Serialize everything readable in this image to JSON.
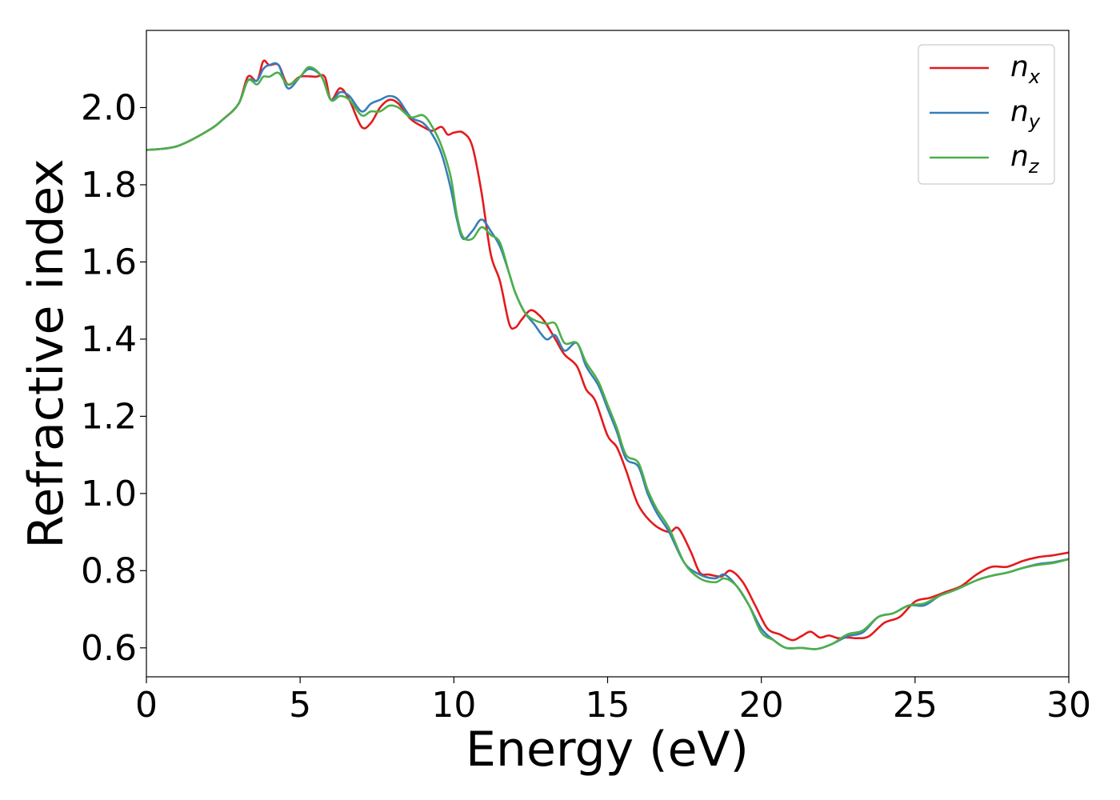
{
  "chart_data": {
    "type": "line",
    "title": "",
    "xlabel": "Energy (eV)",
    "ylabel": "Refractive index",
    "xlim": [
      0,
      30
    ],
    "ylim": [
      0.525,
      2.2
    ],
    "xticks": [
      0,
      5,
      10,
      15,
      20,
      25,
      30
    ],
    "yticks": [
      0.6,
      0.8,
      1.0,
      1.2,
      1.4,
      1.6,
      1.8,
      2.0
    ],
    "grid": false,
    "legend_position": "top-right",
    "series": [
      {
        "name": "n_x",
        "name_base": "n",
        "name_sub": "x",
        "color": "#e41a1c",
        "x": [
          0,
          1,
          2,
          2.5,
          3,
          3.3,
          3.6,
          3.8,
          4,
          4.3,
          4.6,
          5,
          5.5,
          5.8,
          6,
          6.3,
          6.6,
          7,
          7.3,
          7.6,
          7.9,
          8.2,
          8.6,
          9,
          9.3,
          9.6,
          9.8,
          10,
          10.3,
          10.6,
          10.9,
          11.2,
          11.5,
          11.8,
          12,
          12.2,
          12.5,
          12.8,
          13,
          13.3,
          13.6,
          14,
          14.3,
          14.6,
          15,
          15.3,
          15.6,
          16,
          16.5,
          17,
          17.3,
          17.7,
          18,
          18.3,
          18.7,
          19,
          19.4,
          19.8,
          20.2,
          20.6,
          21,
          21.3,
          21.6,
          21.9,
          22.2,
          22.5,
          22.8,
          23.1,
          23.5,
          24,
          24.5,
          25,
          25.5,
          26,
          26.5,
          27,
          27.5,
          28,
          28.5,
          29,
          29.5,
          30
        ],
        "y": [
          1.89,
          1.9,
          1.94,
          1.97,
          2.01,
          2.08,
          2.07,
          2.12,
          2.11,
          2.11,
          2.06,
          2.08,
          2.08,
          2.08,
          2.02,
          2.05,
          2.02,
          1.95,
          1.96,
          2.0,
          2.02,
          2.01,
          1.97,
          1.95,
          1.94,
          1.95,
          1.93,
          1.935,
          1.935,
          1.9,
          1.78,
          1.62,
          1.55,
          1.44,
          1.43,
          1.45,
          1.475,
          1.46,
          1.44,
          1.4,
          1.36,
          1.33,
          1.27,
          1.24,
          1.15,
          1.12,
          1.06,
          0.97,
          0.92,
          0.9,
          0.91,
          0.85,
          0.795,
          0.79,
          0.785,
          0.8,
          0.77,
          0.71,
          0.65,
          0.635,
          0.62,
          0.63,
          0.642,
          0.627,
          0.632,
          0.625,
          0.627,
          0.625,
          0.63,
          0.665,
          0.68,
          0.72,
          0.73,
          0.745,
          0.76,
          0.79,
          0.81,
          0.81,
          0.825,
          0.835,
          0.84,
          0.847
        ]
      },
      {
        "name": "n_y",
        "name_base": "n",
        "name_sub": "y",
        "color": "#377eb8",
        "x": [
          0,
          1,
          2,
          2.5,
          3,
          3.3,
          3.6,
          3.8,
          4,
          4.3,
          4.6,
          5,
          5.3,
          5.7,
          6,
          6.3,
          6.6,
          7,
          7.3,
          7.6,
          7.9,
          8.2,
          8.6,
          9,
          9.3,
          9.6,
          9.9,
          10.1,
          10.3,
          10.6,
          10.9,
          11.2,
          11.5,
          11.8,
          12,
          12.3,
          12.6,
          13,
          13.3,
          13.6,
          14,
          14.3,
          14.7,
          15,
          15.3,
          15.6,
          16,
          16.3,
          16.6,
          17,
          17.5,
          18,
          18.5,
          18.8,
          19.2,
          19.6,
          20,
          20.4,
          20.8,
          21.3,
          21.8,
          22.3,
          22.8,
          23.3,
          23.8,
          24.3,
          24.8,
          25.3,
          25.8,
          26.3,
          27,
          27.5,
          28,
          28.5,
          29,
          29.5,
          30
        ],
        "y": [
          1.89,
          1.9,
          1.94,
          1.97,
          2.01,
          2.07,
          2.07,
          2.1,
          2.11,
          2.11,
          2.05,
          2.08,
          2.1,
          2.08,
          2.02,
          2.04,
          2.03,
          1.99,
          2.01,
          2.02,
          2.03,
          2.02,
          1.975,
          1.96,
          1.93,
          1.88,
          1.79,
          1.71,
          1.66,
          1.68,
          1.71,
          1.68,
          1.64,
          1.57,
          1.52,
          1.47,
          1.44,
          1.4,
          1.41,
          1.37,
          1.39,
          1.33,
          1.28,
          1.22,
          1.16,
          1.09,
          1.07,
          1.0,
          0.95,
          0.9,
          0.82,
          0.79,
          0.78,
          0.79,
          0.76,
          0.71,
          0.65,
          0.62,
          0.6,
          0.6,
          0.597,
          0.61,
          0.63,
          0.64,
          0.68,
          0.69,
          0.71,
          0.71,
          0.735,
          0.75,
          0.775,
          0.787,
          0.795,
          0.807,
          0.817,
          0.822,
          0.83
        ]
      },
      {
        "name": "n_z",
        "name_base": "n",
        "name_sub": "z",
        "color": "#4daf4a",
        "x": [
          0,
          1,
          2,
          2.5,
          3,
          3.3,
          3.6,
          3.8,
          4,
          4.3,
          4.6,
          5,
          5.3,
          5.7,
          6,
          6.3,
          6.6,
          7,
          7.3,
          7.6,
          7.9,
          8.2,
          8.6,
          9,
          9.3,
          9.6,
          9.9,
          10.1,
          10.3,
          10.6,
          10.9,
          11.2,
          11.5,
          11.8,
          12,
          12.3,
          12.6,
          13,
          13.3,
          13.6,
          14,
          14.3,
          14.7,
          15,
          15.3,
          15.6,
          16,
          16.3,
          16.6,
          17,
          17.5,
          18,
          18.5,
          18.8,
          19.2,
          19.6,
          20,
          20.4,
          20.8,
          21.3,
          21.8,
          22.3,
          22.8,
          23.3,
          23.8,
          24.3,
          24.8,
          25.3,
          25.8,
          26.3,
          27,
          27.5,
          28,
          28.5,
          29,
          29.5,
          30
        ],
        "y": [
          1.89,
          1.9,
          1.94,
          1.97,
          2.01,
          2.07,
          2.06,
          2.08,
          2.08,
          2.09,
          2.06,
          2.08,
          2.105,
          2.08,
          2.02,
          2.03,
          2.02,
          1.98,
          1.99,
          1.99,
          2.005,
          2.0,
          1.975,
          1.98,
          1.95,
          1.9,
          1.82,
          1.72,
          1.665,
          1.66,
          1.69,
          1.67,
          1.65,
          1.57,
          1.52,
          1.47,
          1.45,
          1.44,
          1.44,
          1.39,
          1.39,
          1.34,
          1.29,
          1.23,
          1.17,
          1.1,
          1.08,
          1.01,
          0.96,
          0.91,
          0.82,
          0.78,
          0.77,
          0.78,
          0.76,
          0.71,
          0.64,
          0.62,
          0.6,
          0.6,
          0.597,
          0.61,
          0.635,
          0.645,
          0.68,
          0.69,
          0.71,
          0.715,
          0.735,
          0.75,
          0.775,
          0.787,
          0.795,
          0.807,
          0.815,
          0.82,
          0.83
        ]
      }
    ]
  }
}
